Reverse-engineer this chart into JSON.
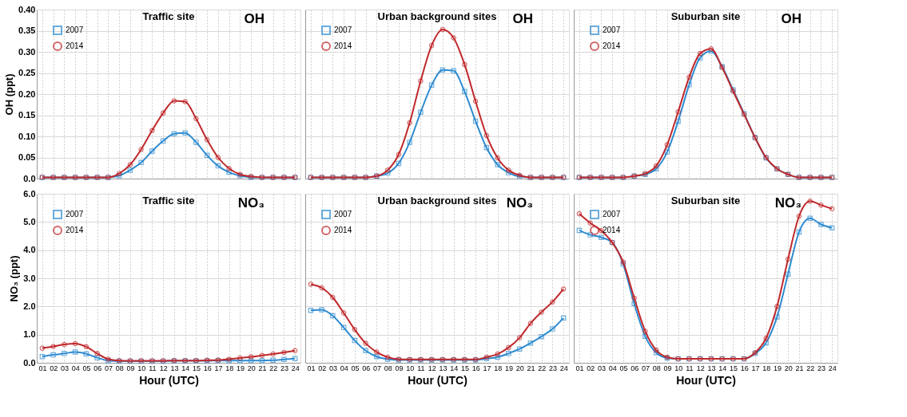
{
  "chart_data": [
    {
      "type": "line",
      "title": "Traffic site",
      "ylabel": "OH (ppt)",
      "annotations": [
        "OH"
      ],
      "categories": [
        "01",
        "02",
        "03",
        "04",
        "05",
        "06",
        "07",
        "08",
        "09",
        "10",
        "11",
        "12",
        "13",
        "14",
        "15",
        "16",
        "17",
        "18",
        "19",
        "20",
        "21",
        "22",
        "23",
        "24"
      ],
      "ylim": [
        0,
        0.4
      ],
      "yticks": [
        {
          "value": 0,
          "label": "0.0"
        },
        0.05,
        {
          "value": 0.1,
          "label": "0.10"
        },
        0.15,
        {
          "value": 0.2,
          "label": "0.20"
        },
        0.25,
        {
          "value": 0.3,
          "label": "0.30"
        },
        0.35,
        {
          "value": 0.4,
          "label": "0.40"
        }
      ],
      "tick_labels": "y",
      "grid": true,
      "legend": "top left",
      "line_style": "solid",
      "series": [
        {
          "name": "2007",
          "color": "#2e8bd0",
          "marker": "square",
          "values": [
            0.003,
            0.003,
            0.003,
            0.003,
            0.003,
            0.003,
            0.003,
            0.007,
            0.02,
            0.038,
            0.065,
            0.089,
            0.106,
            0.108,
            0.086,
            0.055,
            0.03,
            0.015,
            0.007,
            0.003,
            0.003,
            0.003,
            0.003,
            0.003
          ]
        },
        {
          "name": "2014",
          "color": "#c0282b",
          "marker": "circle",
          "values": [
            0.003,
            0.003,
            0.003,
            0.003,
            0.003,
            0.003,
            0.003,
            0.012,
            0.033,
            0.069,
            0.114,
            0.155,
            0.184,
            0.182,
            0.142,
            0.092,
            0.05,
            0.024,
            0.01,
            0.005,
            0.003,
            0.003,
            0.003,
            0.003
          ]
        }
      ]
    },
    {
      "type": "line",
      "title": "Urban background sites",
      "annotations": [
        "OH"
      ],
      "categories": [
        "01",
        "02",
        "03",
        "04",
        "05",
        "06",
        "07",
        "08",
        "09",
        "10",
        "11",
        "12",
        "13",
        "14",
        "15",
        "16",
        "17",
        "18",
        "19",
        "20",
        "21",
        "22",
        "23",
        "24"
      ],
      "ylim": [
        0,
        0.4
      ],
      "yticks": [
        {
          "value": 0,
          "label": null
        },
        {
          "value": 0.05,
          "label": null
        },
        {
          "value": 0.1,
          "label": null
        },
        {
          "value": 0.15,
          "label": null
        },
        {
          "value": 0.2,
          "label": null
        },
        {
          "value": 0.25,
          "label": null
        },
        {
          "value": 0.3,
          "label": null
        },
        {
          "value": 0.35,
          "label": null
        },
        {
          "value": 0.4,
          "label": null
        }
      ],
      "tick_labels": false,
      "grid": true,
      "legend": "top left",
      "line_style": "solid",
      "series": [
        {
          "name": "2007",
          "color": "#2e8bd0",
          "marker": "square",
          "values": [
            0.003,
            0.003,
            0.003,
            0.003,
            0.003,
            0.003,
            0.006,
            0.013,
            0.036,
            0.086,
            0.157,
            0.221,
            0.257,
            0.255,
            0.206,
            0.136,
            0.073,
            0.033,
            0.014,
            0.005,
            0.003,
            0.003,
            0.003,
            0.003
          ]
        },
        {
          "name": "2014",
          "color": "#c0282b",
          "marker": "circle",
          "values": [
            0.003,
            0.003,
            0.003,
            0.003,
            0.003,
            0.003,
            0.006,
            0.02,
            0.057,
            0.132,
            0.231,
            0.315,
            0.353,
            0.333,
            0.27,
            0.183,
            0.102,
            0.049,
            0.02,
            0.008,
            0.003,
            0.003,
            0.003,
            0.003
          ]
        }
      ]
    },
    {
      "type": "line",
      "title": "Suburban site",
      "annotations": [
        "OH"
      ],
      "categories": [
        "01",
        "02",
        "03",
        "04",
        "05",
        "06",
        "07",
        "08",
        "09",
        "10",
        "11",
        "12",
        "13",
        "14",
        "15",
        "16",
        "17",
        "18",
        "19",
        "20",
        "21",
        "22",
        "23",
        "24"
      ],
      "ylim": [
        0,
        0.4
      ],
      "yticks": [
        {
          "value": 0,
          "label": null
        },
        {
          "value": 0.05,
          "label": null
        },
        {
          "value": 0.1,
          "label": null
        },
        {
          "value": 0.15,
          "label": null
        },
        {
          "value": 0.2,
          "label": null
        },
        {
          "value": 0.25,
          "label": null
        },
        {
          "value": 0.3,
          "label": null
        },
        {
          "value": 0.35,
          "label": null
        },
        {
          "value": 0.4,
          "label": null
        }
      ],
      "tick_labels": false,
      "grid": true,
      "legend": "top left",
      "line_style": "solid",
      "series": [
        {
          "name": "2007",
          "color": "#2e8bd0",
          "marker": "square",
          "values": [
            0.003,
            0.003,
            0.003,
            0.003,
            0.003,
            0.006,
            0.01,
            0.023,
            0.063,
            0.136,
            0.222,
            0.286,
            0.302,
            0.265,
            0.21,
            0.154,
            0.097,
            0.049,
            0.023,
            0.01,
            0.003,
            0.003,
            0.003,
            0.003
          ]
        },
        {
          "name": "2014",
          "color": "#c0282b",
          "marker": "circle",
          "values": [
            0.003,
            0.003,
            0.003,
            0.003,
            0.003,
            0.006,
            0.012,
            0.03,
            0.08,
            0.158,
            0.24,
            0.296,
            0.307,
            0.263,
            0.207,
            0.152,
            0.097,
            0.05,
            0.023,
            0.01,
            0.003,
            0.003,
            0.003,
            0.003
          ]
        }
      ]
    },
    {
      "type": "line",
      "title": "Traffic site",
      "ylabel": "NO₃ (ppt)",
      "xlabel": "Hour (UTC)",
      "annotations": [
        "NO₃"
      ],
      "categories": [
        "01",
        "02",
        "03",
        "04",
        "05",
        "06",
        "07",
        "08",
        "09",
        "10",
        "11",
        "12",
        "13",
        "14",
        "15",
        "16",
        "17",
        "18",
        "19",
        "20",
        "21",
        "22",
        "23",
        "24"
      ],
      "ylim": [
        0,
        6
      ],
      "yticks": [
        {
          "value": 0,
          "label": "0.0"
        },
        {
          "value": 1,
          "label": "1.0"
        },
        {
          "value": 2,
          "label": "2.0"
        },
        {
          "value": 3,
          "label": "3.0"
        },
        {
          "value": 4,
          "label": "4.0"
        },
        {
          "value": 5,
          "label": "5.0"
        },
        {
          "value": 6,
          "label": "6.0"
        }
      ],
      "grid": true,
      "legend": "top left",
      "line_style": "solid",
      "series": [
        {
          "name": "2007",
          "color": "#2e8bd0",
          "marker": "square",
          "values": [
            0.22,
            0.28,
            0.33,
            0.38,
            0.32,
            0.18,
            0.08,
            0.06,
            0.06,
            0.06,
            0.06,
            0.06,
            0.07,
            0.07,
            0.07,
            0.07,
            0.08,
            0.08,
            0.08,
            0.08,
            0.08,
            0.09,
            0.12,
            0.15
          ]
        },
        {
          "name": "2014",
          "color": "#c0282b",
          "marker": "circle",
          "values": [
            0.52,
            0.58,
            0.65,
            0.68,
            0.57,
            0.33,
            0.13,
            0.08,
            0.07,
            0.07,
            0.07,
            0.07,
            0.08,
            0.08,
            0.08,
            0.09,
            0.1,
            0.13,
            0.17,
            0.21,
            0.26,
            0.31,
            0.37,
            0.43
          ]
        }
      ]
    },
    {
      "type": "line",
      "title": "Urban background sites",
      "xlabel": "Hour (UTC)",
      "annotations": [
        "NO₃"
      ],
      "categories": [
        "01",
        "02",
        "03",
        "04",
        "05",
        "06",
        "07",
        "08",
        "09",
        "10",
        "11",
        "12",
        "13",
        "14",
        "15",
        "16",
        "17",
        "18",
        "19",
        "20",
        "21",
        "22",
        "23",
        "24"
      ],
      "ylim": [
        0,
        6
      ],
      "yticks": [
        {
          "value": 0,
          "label": null
        },
        {
          "value": 1,
          "label": null
        },
        {
          "value": 2,
          "label": null
        },
        {
          "value": 3,
          "label": null
        },
        {
          "value": 4,
          "label": null
        },
        {
          "value": 5,
          "label": null
        },
        {
          "value": 6,
          "label": null
        }
      ],
      "tick_labels": "x",
      "grid": true,
      "legend": "top left",
      "line_style": "solid",
      "series": [
        {
          "name": "2007",
          "color": "#2e8bd0",
          "marker": "square",
          "values": [
            1.86,
            1.88,
            1.67,
            1.25,
            0.79,
            0.43,
            0.22,
            0.13,
            0.1,
            0.1,
            0.1,
            0.1,
            0.1,
            0.1,
            0.1,
            0.1,
            0.15,
            0.2,
            0.33,
            0.49,
            0.7,
            0.93,
            1.2,
            1.59
          ]
        },
        {
          "name": "2014",
          "color": "#c0282b",
          "marker": "circle",
          "values": [
            2.79,
            2.66,
            2.32,
            1.77,
            1.18,
            0.69,
            0.38,
            0.2,
            0.13,
            0.12,
            0.12,
            0.12,
            0.12,
            0.12,
            0.12,
            0.12,
            0.2,
            0.31,
            0.54,
            0.89,
            1.4,
            1.8,
            2.16,
            2.62
          ]
        }
      ]
    },
    {
      "type": "line",
      "title": "Suburban site",
      "xlabel": "Hour (UTC)",
      "annotations": [
        "NO₃"
      ],
      "categories": [
        "01",
        "02",
        "03",
        "04",
        "05",
        "06",
        "07",
        "08",
        "09",
        "10",
        "11",
        "12",
        "13",
        "14",
        "15",
        "16",
        "17",
        "18",
        "19",
        "20",
        "21",
        "22",
        "23",
        "24"
      ],
      "ylim": [
        0,
        6
      ],
      "yticks": [
        {
          "value": 0,
          "label": null
        },
        {
          "value": 1,
          "label": null
        },
        {
          "value": 2,
          "label": null
        },
        {
          "value": 3,
          "label": null
        },
        {
          "value": 4,
          "label": null
        },
        {
          "value": 5,
          "label": null
        },
        {
          "value": 6,
          "label": null
        }
      ],
      "tick_labels": "x",
      "grid": true,
      "legend": "top left",
      "line_style": "solid",
      "series": [
        {
          "name": "2007",
          "color": "#2e8bd0",
          "marker": "square",
          "values": [
            4.7,
            4.54,
            4.45,
            4.27,
            3.5,
            2.1,
            0.94,
            0.36,
            0.17,
            0.14,
            0.14,
            0.14,
            0.14,
            0.14,
            0.14,
            0.14,
            0.33,
            0.71,
            1.63,
            3.15,
            4.64,
            5.13,
            4.91,
            4.79
          ]
        },
        {
          "name": "2014",
          "color": "#c0282b",
          "marker": "circle",
          "values": [
            5.29,
            4.96,
            4.69,
            4.27,
            3.57,
            2.3,
            1.12,
            0.45,
            0.2,
            0.14,
            0.14,
            0.14,
            0.14,
            0.14,
            0.14,
            0.14,
            0.36,
            0.87,
            2.0,
            3.68,
            5.2,
            5.74,
            5.6,
            5.47
          ]
        }
      ]
    }
  ]
}
